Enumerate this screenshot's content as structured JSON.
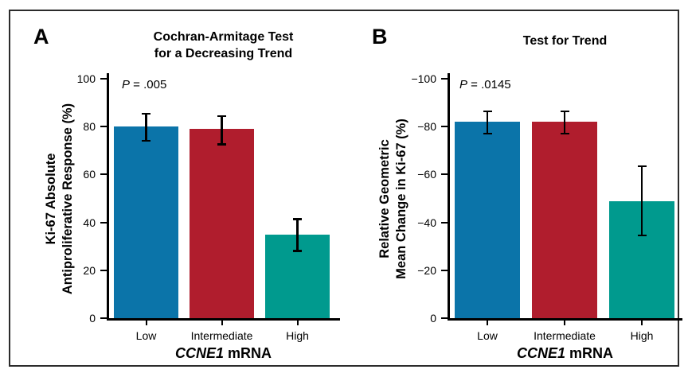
{
  "figure": {
    "background": "#ffffff",
    "border_color": "#2b2b2b"
  },
  "panels": [
    {
      "letter": "A",
      "title_lines": [
        "Cochran-Armitage Test",
        "for a Decreasing Trend"
      ],
      "p_annotation": {
        "italic": "P",
        "rest": " = .005"
      },
      "y_label_lines": [
        "Ki-67 Absolute",
        "Antiproliferative Response (%)"
      ],
      "x_label": {
        "italic": "CCNE1",
        "rest": " mRNA"
      }
    },
    {
      "letter": "B",
      "title_lines": [
        "Test for Trend"
      ],
      "p_annotation": {
        "italic": "P",
        "rest": " = .0145"
      },
      "y_label_lines": [
        "Relative Geometric",
        "Mean Change in Ki-67 (%)"
      ],
      "x_label": {
        "italic": "CCNE1",
        "rest": " mRNA"
      }
    }
  ],
  "chart_data": [
    {
      "type": "bar",
      "title": "Cochran-Armitage Test for a Decreasing Trend",
      "categories": [
        "Low",
        "Intermediate",
        "High"
      ],
      "values": [
        80,
        79,
        35
      ],
      "error_bars": {
        "low": [
          74,
          72.5,
          28
        ],
        "high": [
          85.5,
          84.5,
          41.5
        ]
      },
      "bar_colors": [
        "#0b74a9",
        "#b01d2d",
        "#009a8e"
      ],
      "xlabel": "CCNE1 mRNA",
      "ylabel": "Ki-67 Absolute Antiproliferative Response (%)",
      "ylim": [
        0,
        100
      ],
      "yticks": [
        0,
        20,
        40,
        60,
        80,
        100
      ],
      "ytick_labels": [
        "0",
        "20",
        "40",
        "60",
        "80",
        "100"
      ],
      "annotation": "P = .005",
      "grid": false,
      "legend": null
    },
    {
      "type": "bar",
      "title": "Test for Trend",
      "categories": [
        "Low",
        "Intermediate",
        "High"
      ],
      "values": [
        -82,
        -82,
        -49
      ],
      "error_bars": {
        "low": [
          -86.5,
          -86.5,
          -63.5
        ],
        "high": [
          -77,
          -77,
          -34.5
        ]
      },
      "bar_colors": [
        "#0b74a9",
        "#b01d2d",
        "#009a8e"
      ],
      "xlabel": "CCNE1 mRNA",
      "ylabel": "Relative Geometric Mean Change in Ki-67 (%)",
      "ylim": [
        0,
        -100
      ],
      "yticks": [
        0,
        -20,
        -40,
        -60,
        -80,
        -100
      ],
      "ytick_labels": [
        "0",
        "−20",
        "−40",
        "−60",
        "−80",
        "−100"
      ],
      "annotation": "P = .0145",
      "grid": false,
      "legend": null
    }
  ]
}
